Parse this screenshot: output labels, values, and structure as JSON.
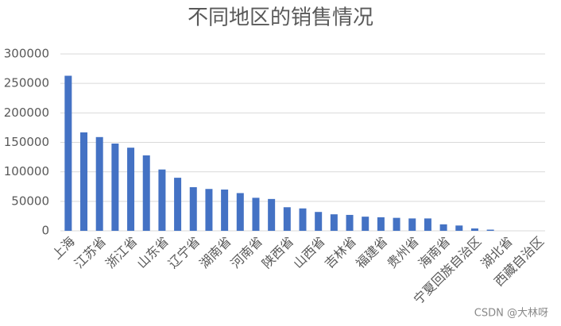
{
  "chart_data": {
    "type": "bar",
    "title": "不同地区的销售情况",
    "categories": [
      "上海",
      null,
      "江苏省",
      null,
      "浙江省",
      null,
      "山东省",
      null,
      "辽宁省",
      null,
      "湖南省",
      null,
      "河南省",
      null,
      "陕西省",
      null,
      "山西省",
      null,
      "吉林省",
      null,
      "福建省",
      null,
      "贵州省",
      null,
      "海南省",
      null,
      "宁夏回族自治区",
      null,
      "湖北省",
      null,
      "西藏自治区"
    ],
    "values": [
      263000,
      167000,
      159000,
      148000,
      141000,
      128000,
      104000,
      90000,
      74000,
      71000,
      70000,
      64000,
      56000,
      54000,
      40000,
      38000,
      32000,
      28000,
      27000,
      24000,
      23000,
      22000,
      21000,
      21000,
      11000,
      9000,
      4000,
      2000,
      0,
      0,
      0
    ],
    "color": "#4472c4",
    "ylim": [
      0,
      300000
    ],
    "yticks": [
      0,
      50000,
      100000,
      150000,
      200000,
      250000,
      300000
    ],
    "grid": true,
    "watermark": "CSDN @大林呀"
  }
}
